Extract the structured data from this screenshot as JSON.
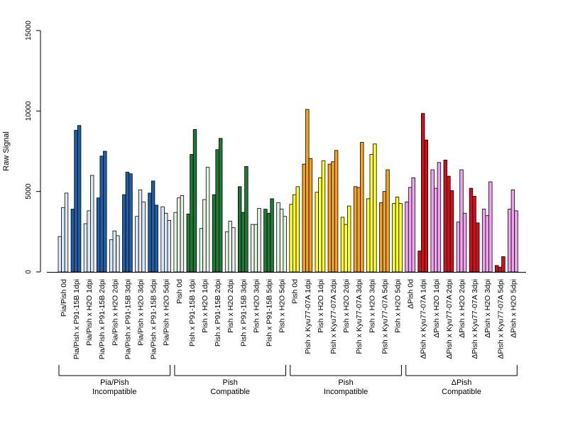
{
  "chart_data": {
    "type": "bar",
    "ylabel": "Raw Signal",
    "ylim": [
      0,
      15000
    ],
    "yticks": [
      0,
      5000,
      10000,
      15000
    ],
    "grid": false,
    "legend": "none",
    "colors": {
      "pia_light": "#dbe9f6",
      "pia_dark": "#1f5fa8",
      "pish_comp_light": "#e6f3e4",
      "pish_comp_dark": "#1f7a35",
      "pish_incomp_light": "#ffff2a",
      "pish_incomp_dark": "#f5a31a",
      "dpish_light": "#f0a3ee",
      "dpish_dark": "#d0101c"
    },
    "categories": [
      {
        "label": "Pia/Pish 0d",
        "tone": "pia_light",
        "values": [
          2200,
          4000,
          4900
        ]
      },
      {
        "label": "Pia/Pish x P91-15B 1dpi",
        "tone": "pia_dark",
        "values": [
          3900,
          8800,
          9100
        ]
      },
      {
        "label": "Pia/Pish x H2O 1dpi",
        "tone": "pia_light",
        "values": [
          3000,
          3800,
          6000
        ]
      },
      {
        "label": "Pia/Pish x P91-15B 2dpi",
        "tone": "pia_dark",
        "values": [
          4600,
          7200,
          7500
        ]
      },
      {
        "label": "Pia/Pish x H2O 2dpi",
        "tone": "pia_light",
        "values": [
          2000,
          2550,
          2250
        ]
      },
      {
        "label": "Pia/Pish x P91-15B 3dpi",
        "tone": "pia_dark",
        "values": [
          4800,
          6200,
          6100
        ]
      },
      {
        "label": "Pia/Pish x H2O 3dpi",
        "tone": "pia_light",
        "values": [
          3450,
          5100,
          4350
        ]
      },
      {
        "label": "Pia/Pish x P91-15B 5dpi",
        "tone": "pia_dark",
        "values": [
          4900,
          5650,
          4150
        ]
      },
      {
        "label": "Pia/Pish x H2O 5dpi",
        "tone": "pia_light",
        "values": [
          4050,
          3650,
          3200
        ]
      },
      {
        "label": "Pish 0d",
        "tone": "pish_comp_light",
        "values": [
          3700,
          4600,
          4750
        ]
      },
      {
        "label": "Pish x P91-15B 1dpi",
        "tone": "pish_comp_dark",
        "values": [
          3600,
          7300,
          8850
        ]
      },
      {
        "label": "Pish x H2O 1dpi",
        "tone": "pish_comp_light",
        "values": [
          2700,
          4500,
          6500
        ]
      },
      {
        "label": "Pish x P91-15B 2dpi",
        "tone": "pish_comp_dark",
        "values": [
          4800,
          7600,
          8300
        ]
      },
      {
        "label": "Pish x H2O 2dpi",
        "tone": "pish_comp_light",
        "values": [
          2500,
          3150,
          2750
        ]
      },
      {
        "label": "Pish x P91-15B 3dpi",
        "tone": "pish_comp_dark",
        "values": [
          5300,
          3700,
          6550
        ]
      },
      {
        "label": "Pish x H2O 3dpi",
        "tone": "pish_comp_light",
        "values": [
          2950,
          2950,
          3950
        ]
      },
      {
        "label": "Pish x P91-15B 5dpi",
        "tone": "pish_comp_dark",
        "values": [
          3900,
          3650,
          4550
        ]
      },
      {
        "label": "Pish x H2O 5dpi",
        "tone": "pish_comp_light",
        "values": [
          4300,
          3900,
          3450
        ]
      },
      {
        "label": "Pish 0d",
        "tone": "pish_incomp_light",
        "values": [
          4200,
          4800,
          5300
        ]
      },
      {
        "label": "Pish x Kyu77-07A 1dpi",
        "tone": "pish_incomp_dark",
        "values": [
          6700,
          10100,
          7050
        ]
      },
      {
        "label": "Pish x H2O 1dpi",
        "tone": "pish_incomp_light",
        "values": [
          4950,
          5850,
          6900
        ]
      },
      {
        "label": "Pish x Kyu77-07A 2dpi",
        "tone": "pish_incomp_dark",
        "values": [
          6700,
          6850,
          7550
        ]
      },
      {
        "label": "Pish x H2O 2dpi",
        "tone": "pish_incomp_light",
        "values": [
          3400,
          2950,
          4100
        ]
      },
      {
        "label": "Pish x Kyu77-07A 3dpi",
        "tone": "pish_incomp_dark",
        "values": [
          5300,
          5250,
          8050
        ]
      },
      {
        "label": "Pish x H2O 3dpi",
        "tone": "pish_incomp_light",
        "values": [
          4550,
          7300,
          7950
        ]
      },
      {
        "label": "Pish x Kyu77-07A 5dpi",
        "tone": "pish_incomp_dark",
        "values": [
          4300,
          5000,
          6350
        ]
      },
      {
        "label": "Pish x H2O 5dpi",
        "tone": "pish_incomp_light",
        "values": [
          4250,
          4650,
          4250
        ]
      },
      {
        "label": "ΔPish 0d",
        "tone": "dpish_light",
        "values": [
          4350,
          5250,
          5850
        ]
      },
      {
        "label": "ΔPish x Kyu77-07A 1dpi",
        "tone": "dpish_dark",
        "values": [
          1300,
          9850,
          8200
        ]
      },
      {
        "label": "ΔPish x H2O 1dpi",
        "tone": "dpish_light",
        "values": [
          6350,
          5200,
          6800
        ]
      },
      {
        "label": "ΔPish x Kyu77-07A 2dpi",
        "tone": "dpish_dark",
        "values": [
          6950,
          5950,
          5050
        ]
      },
      {
        "label": "ΔPish x H2O 2dpi",
        "tone": "dpish_light",
        "values": [
          3100,
          6350,
          3650
        ]
      },
      {
        "label": "ΔPish x Kyu77-07A 3dpi",
        "tone": "dpish_dark",
        "values": [
          5200,
          4700,
          3050
        ]
      },
      {
        "label": "ΔPish x H2O 3dpi",
        "tone": "dpish_light",
        "values": [
          3900,
          3500,
          5600
        ]
      },
      {
        "label": "ΔPish x Kyu77-07A 5dpi",
        "tone": "dpish_dark",
        "values": [
          400,
          300,
          950
        ]
      },
      {
        "label": "ΔPish x H2O 5dpi",
        "tone": "dpish_light",
        "values": [
          3900,
          5100,
          3800
        ]
      }
    ],
    "groups": [
      {
        "line1": "Pia/Pish",
        "line2": "Incompatible",
        "start": 0,
        "end": 8
      },
      {
        "line1": "Pish",
        "line2": "Compatible",
        "start": 9,
        "end": 17
      },
      {
        "line1": "Pish",
        "line2": "Incompatible",
        "start": 18,
        "end": 26
      },
      {
        "line1": "ΔPish",
        "line2": "Compatible",
        "start": 27,
        "end": 35
      }
    ]
  }
}
